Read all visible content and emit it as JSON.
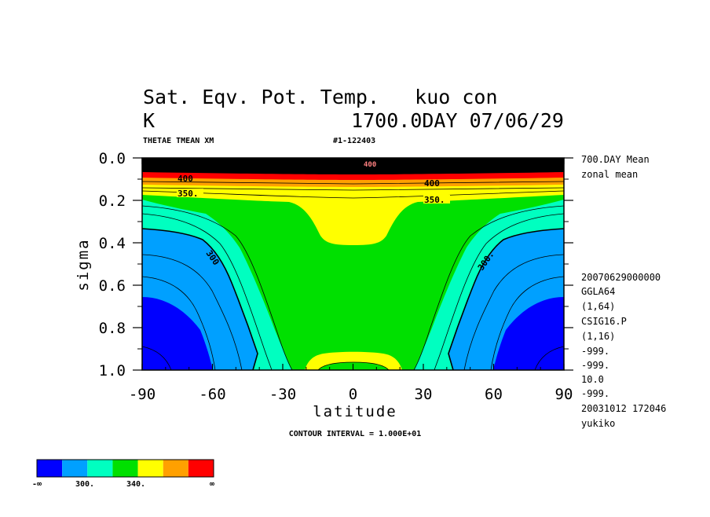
{
  "header": {
    "title_line1": "Sat. Eqv. Pot. Temp.   kuo con",
    "units": "K",
    "title_line2_right": "1700.0DAY 07/06/29",
    "variable": "THETAE TMEAN XM",
    "run_id": "#1-122403"
  },
  "side_notes": {
    "top": [
      "700.DAY Mean",
      "zonal mean"
    ],
    "bottom": [
      "20070629000000",
      "GGLA64",
      "(1,64)",
      "CSIG16.P",
      "(1,16)",
      "-999.",
      "-999.",
      "10.0",
      "-999.",
      "20031012 172046",
      "yukiko"
    ]
  },
  "footer": {
    "contour_interval": "CONTOUR INTERVAL = 1.000E+01"
  },
  "colorbar": {
    "colors": [
      "#0000ff",
      "#00a0ff",
      "#00ffc0",
      "#00e000",
      "#ffff00",
      "#ffa000",
      "#ff0000"
    ],
    "labels": [
      "-∞",
      "300.",
      "340.",
      "∞"
    ]
  },
  "chart_data": {
    "type": "contour",
    "title": "Sat. Eqv. Pot. Temp.   kuo con",
    "xlabel": "latitude",
    "ylabel": "sigma",
    "xlim": [
      -90,
      90
    ],
    "ylim": [
      0.0,
      1.0
    ],
    "x_ticks": [
      "-90",
      "-60",
      "-30",
      "0",
      "30",
      "60",
      "90"
    ],
    "y_ticks": [
      "0.0",
      "0.2",
      "0.4",
      "0.6",
      "0.8",
      "1.0"
    ],
    "contour_interval": 10,
    "levels": [
      {
        "name": "300",
        "color": "#00a0ff",
        "sigma_at_pole": 0.34,
        "sigma_at_lat60": 0.27
      },
      {
        "name": "320",
        "color": "#00ffc0",
        "sigma_at_pole": 0.29,
        "sigma_at_lat60": 0.23
      },
      {
        "name": "340",
        "color": "#00e000",
        "sigma_at_pole": 0.19,
        "sigma_at_lat60": 0.19
      },
      {
        "name": "350",
        "color": "#ffff00",
        "sigma_at_pole": 0.15,
        "sigma_at_equator": 0.2
      }
    ],
    "contour_labels": [
      "400",
      "400",
      "400",
      "350.",
      "350.",
      "300",
      "300."
    ]
  }
}
